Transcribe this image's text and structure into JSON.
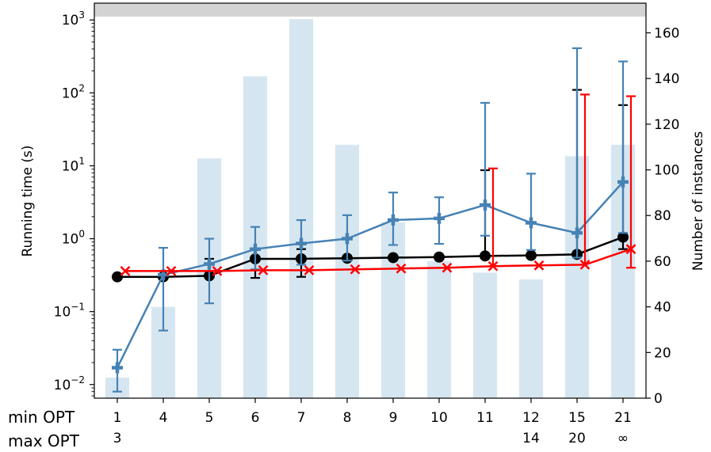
{
  "chart_data": {
    "type": "bar",
    "title": "",
    "xlabel": "",
    "ylabel": "Running time (s)",
    "ylabel_right": "Number of instances",
    "yscale": "log",
    "ylim": [
      0.0065,
      1700
    ],
    "ylim_right": [
      0,
      173
    ],
    "grid": false,
    "legend": "none",
    "row_labels": [
      "min OPT",
      "max OPT"
    ],
    "categories": [
      {
        "min": "1",
        "max": "3"
      },
      {
        "min": "4",
        "max": ""
      },
      {
        "min": "5",
        "max": ""
      },
      {
        "min": "6",
        "max": ""
      },
      {
        "min": "7",
        "max": ""
      },
      {
        "min": "8",
        "max": ""
      },
      {
        "min": "9",
        "max": ""
      },
      {
        "min": "10",
        "max": ""
      },
      {
        "min": "11",
        "max": ""
      },
      {
        "min": "12",
        "max": "14"
      },
      {
        "min": "15",
        "max": "20"
      },
      {
        "min": "21",
        "max": "∞"
      }
    ],
    "yticks_left": [
      {
        "base": "10",
        "exp": "−2",
        "value": 0.01
      },
      {
        "base": "10",
        "exp": "−1",
        "value": 0.1
      },
      {
        "base": "10",
        "exp": "0",
        "value": 1
      },
      {
        "base": "10",
        "exp": "1",
        "value": 10
      },
      {
        "base": "10",
        "exp": "2",
        "value": 100
      },
      {
        "base": "10",
        "exp": "3",
        "value": 1000
      }
    ],
    "yticks_right": [
      0,
      20,
      40,
      60,
      80,
      100,
      120,
      140,
      160
    ],
    "bars": {
      "axis": "right",
      "color": "#d6e6f1",
      "values": [
        9,
        40,
        105,
        141,
        166,
        111,
        77,
        60,
        55,
        52,
        106,
        111
      ]
    },
    "series": [
      {
        "color": "#000000",
        "marker": "circle",
        "values": [
          0.3,
          0.3,
          0.31,
          0.53,
          0.53,
          0.54,
          0.55,
          0.56,
          0.58,
          0.59,
          0.61,
          1.05
        ],
        "err_low": [
          null,
          null,
          0.3,
          0.29,
          0.3,
          null,
          null,
          null,
          null,
          null,
          null,
          0.72
        ],
        "err_high": [
          null,
          null,
          0.53,
          0.7,
          0.72,
          null,
          null,
          null,
          8.7,
          null,
          110,
          68
        ]
      },
      {
        "color": "#4682b4",
        "marker": "plus",
        "values": [
          0.017,
          0.32,
          0.45,
          0.72,
          0.86,
          1.0,
          1.8,
          1.9,
          2.9,
          1.65,
          1.2,
          6.0
        ],
        "err_low": [
          0.008,
          0.055,
          0.13,
          0.38,
          0.44,
          0.5,
          0.82,
          0.85,
          1.1,
          0.7,
          0.55,
          1.2
        ],
        "err_high": [
          0.03,
          0.75,
          1.0,
          1.45,
          1.8,
          2.1,
          4.3,
          3.7,
          73,
          7.8,
          410,
          270
        ]
      },
      {
        "color": "#ff0000",
        "marker": "x",
        "values": [
          0.36,
          0.36,
          0.36,
          0.37,
          0.37,
          0.38,
          0.39,
          0.4,
          0.42,
          0.43,
          0.44,
          0.72
        ],
        "err_low": [
          null,
          null,
          null,
          null,
          null,
          null,
          null,
          null,
          null,
          null,
          null,
          0.4
        ],
        "err_high": [
          null,
          null,
          null,
          null,
          null,
          null,
          null,
          null,
          9.2,
          null,
          95,
          90
        ]
      }
    ]
  }
}
